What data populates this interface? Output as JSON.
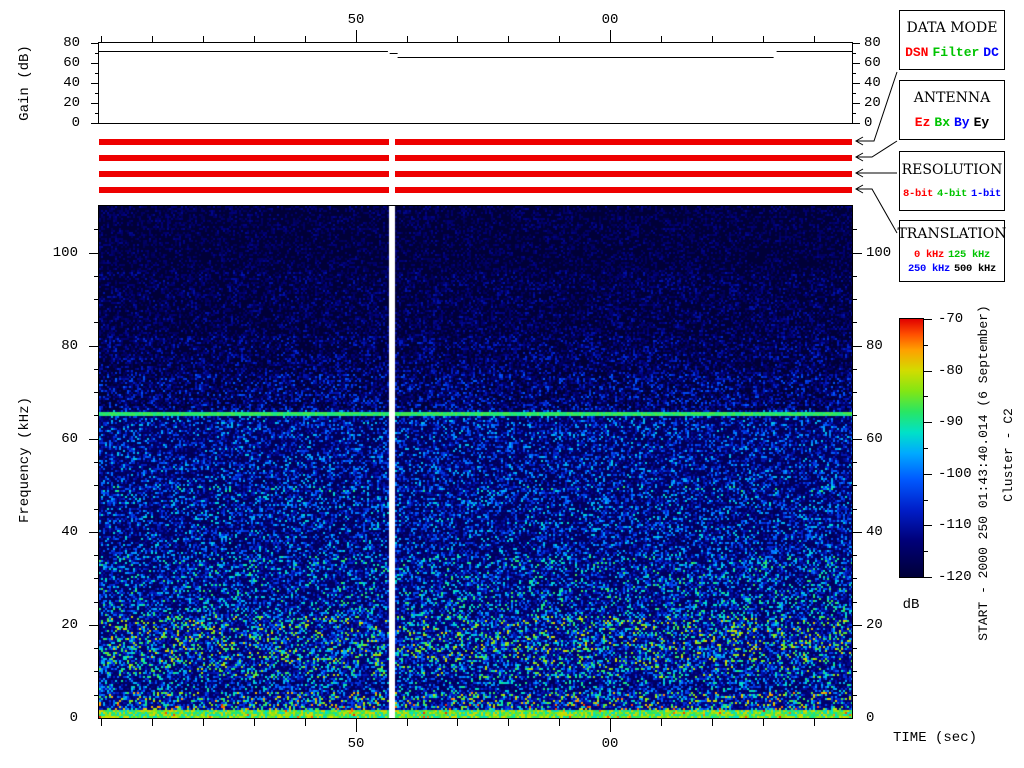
{
  "window": {
    "background": "#ffffff"
  },
  "gain_panel": {
    "ylabel": "Gain (dB)",
    "ylim": [
      0,
      80
    ],
    "yticks": [
      0,
      20,
      40,
      60,
      80
    ],
    "minor_tick_db": 10,
    "series_segments": [
      {
        "t_start": 0,
        "t_end": 11.35,
        "gain_db": 72
      },
      {
        "t_start": 11.42,
        "t_end": 11.73,
        "gain_db": 70
      },
      {
        "t_start": 11.73,
        "t_end": 26.5,
        "gain_db": 66
      },
      {
        "t_start": 26.62,
        "t_end": 29.58,
        "gain_db": 72
      }
    ]
  },
  "time_axis": {
    "axis_label": "TIME (sec)",
    "duration_s": 29.58,
    "minor_tick_interval_s": 2,
    "first_tick_offset_s": 0.08,
    "tick_labels": [
      {
        "label": "50",
        "t": 10.08
      },
      {
        "label": "00",
        "t": 20.08
      }
    ]
  },
  "status_bars": {
    "color": "#ee0000",
    "row_count": 4,
    "gap_time_s": 11.38,
    "gap_width_s": 0.25
  },
  "legend": {
    "boxes": [
      {
        "title": "DATA MODE",
        "items": [
          {
            "label": "DSN",
            "color": "#ff0000"
          },
          {
            "label": "Filter",
            "color": "#00c400"
          },
          {
            "label": "DC",
            "color": "#0000ff"
          }
        ]
      },
      {
        "title": "ANTENNA",
        "items": [
          {
            "label": "Ez",
            "color": "#ff0000"
          },
          {
            "label": "Bx",
            "color": "#00c400"
          },
          {
            "label": "By",
            "color": "#0000ff"
          },
          {
            "label": "Ey",
            "color": "#000000"
          }
        ]
      },
      {
        "title": "RESOLUTION",
        "items": [
          {
            "label": "8-bit",
            "color": "#ff0000"
          },
          {
            "label": "4-bit",
            "color": "#00c400"
          },
          {
            "label": "1-bit",
            "color": "#0000ff"
          }
        ]
      },
      {
        "title": "TRANSLATION",
        "rows": [
          [
            {
              "label": "0 kHz",
              "color": "#ff0000"
            },
            {
              "label": "125 kHz",
              "color": "#00c400"
            }
          ],
          [
            {
              "label": "250 kHz",
              "color": "#0000ff"
            },
            {
              "label": "500 kHz",
              "color": "#000000"
            }
          ]
        ]
      }
    ]
  },
  "freq_axis": {
    "ylabel": "Frequency (kHz)",
    "ylim": [
      0,
      110
    ],
    "yticks": [
      0,
      20,
      40,
      60,
      80,
      100
    ],
    "minor_tick_khz": 5
  },
  "colorbar": {
    "unit": "dB",
    "range_db": [
      -70,
      -120
    ],
    "ticks": [
      -70,
      -80,
      -90,
      -100,
      -110,
      -120
    ],
    "minor_tick_db": 5
  },
  "side_text": {
    "start_line": "START - 2000 250 01:43:40.014 (6 September)",
    "cluster_line": "Cluster - C2"
  },
  "spectrogram": {
    "background": "#000038",
    "emission_line_khz": 65.4,
    "emission_line_halfwidth_khz": 0.4,
    "low_band_max_khz": 1.8,
    "bands": [
      {
        "f_min": 96,
        "f_max": 110,
        "base": 0.1
      },
      {
        "f_min": 82,
        "f_max": 96,
        "base": 0.13
      },
      {
        "f_min": 74,
        "f_max": 82,
        "base": 0.17
      },
      {
        "f_min": 66,
        "f_max": 74,
        "base": 0.22
      },
      {
        "f_min": 50,
        "f_max": 66,
        "base": 0.3
      },
      {
        "f_min": 48.4,
        "f_max": 50,
        "base": 0.37
      },
      {
        "f_min": 35,
        "f_max": 48.4,
        "base": 0.32
      },
      {
        "f_min": 22,
        "f_max": 35,
        "base": 0.38
      },
      {
        "f_min": 12,
        "f_max": 22,
        "base": 0.48
      },
      {
        "f_min": 8.5,
        "f_max": 12,
        "base": 0.45
      },
      {
        "f_min": 5.5,
        "f_max": 8.5,
        "base": 0.36
      },
      {
        "f_min": 3,
        "f_max": 5.5,
        "base": 0.52
      },
      {
        "f_min": 1.8,
        "f_max": 3,
        "base": 0.56
      }
    ],
    "colormap_stops": [
      [
        0.0,
        "#000038"
      ],
      [
        0.14,
        "#000078"
      ],
      [
        0.26,
        "#001ec8"
      ],
      [
        0.38,
        "#005aff"
      ],
      [
        0.48,
        "#00aaff"
      ],
      [
        0.56,
        "#00e1c8"
      ],
      [
        0.64,
        "#28e664"
      ],
      [
        0.72,
        "#82e614"
      ],
      [
        0.8,
        "#d2dc00"
      ],
      [
        0.88,
        "#ffa000"
      ],
      [
        0.94,
        "#ff5000"
      ],
      [
        1.0,
        "#e10000"
      ]
    ]
  },
  "chart_data": [
    {
      "type": "line",
      "title": "Receiver gain vs time",
      "ylabel": "Gain (dB)",
      "ylim": [
        0,
        80
      ],
      "yticks": [
        0,
        20,
        40,
        60,
        80
      ],
      "x_tick_labels": [
        "50",
        "00"
      ],
      "series": [
        {
          "name": "gain",
          "segments": [
            {
              "from_s": 0,
              "to_s": 11.35,
              "gain_db": 72
            },
            {
              "from_s": 11.42,
              "to_s": 11.73,
              "gain_db": 70
            },
            {
              "from_s": 11.73,
              "to_s": 26.5,
              "gain_db": 66
            },
            {
              "from_s": 26.62,
              "to_s": 29.58,
              "gain_db": 72
            }
          ]
        }
      ]
    },
    {
      "type": "heatmap",
      "title": "Cluster C2 WBD frequency-time spectrogram",
      "xlabel": "TIME (sec)",
      "ylabel": "Frequency (kHz)",
      "xlim_s": [
        0,
        29.58
      ],
      "ylim": [
        0,
        110
      ],
      "yticks": [
        0,
        20,
        40,
        60,
        80,
        100
      ],
      "x_tick_labels": [
        "50",
        "00"
      ],
      "colorbar": {
        "unit": "dB",
        "min": -120,
        "max": -70,
        "ticks": [
          -70,
          -80,
          -90,
          -100,
          -110,
          -120
        ]
      },
      "features": [
        "narrowband emission line at ~65.4 kHz spanning the whole interval (~-100 dB)",
        "broadband noise below ~80 kHz intensifying toward lower frequencies",
        "intense band below ~2 kHz reaching -85 to -75 dB with sporadic stronger bursts",
        "faint enhancement near ~49 kHz",
        "relative minimum band near 6-8.5 kHz",
        "white data-gap column at t = ~11.4 s (also splits the four red status bars)"
      ]
    }
  ]
}
